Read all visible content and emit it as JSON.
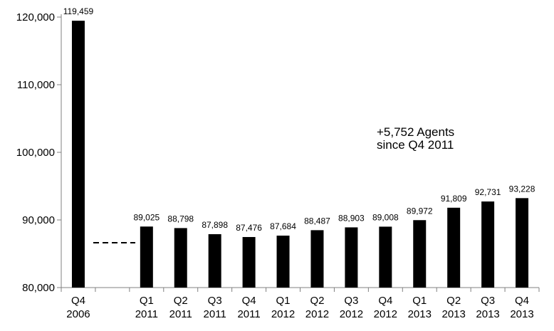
{
  "chart_data": {
    "type": "bar",
    "title": "",
    "xlabel": "",
    "ylabel": "",
    "ylim": [
      80000,
      120000
    ],
    "yticks": [
      "80,000",
      "90,000",
      "100,000",
      "110,000",
      "120,000"
    ],
    "ytick_values": [
      80000,
      90000,
      100000,
      110000,
      120000
    ],
    "categories": [
      {
        "q": "Q4",
        "y": "2006"
      },
      {
        "q": "",
        "y": ""
      },
      {
        "q": "Q1",
        "y": "2011"
      },
      {
        "q": "Q2",
        "y": "2011"
      },
      {
        "q": "Q3",
        "y": "2011"
      },
      {
        "q": "Q4",
        "y": "2011"
      },
      {
        "q": "Q1",
        "y": "2012"
      },
      {
        "q": "Q2",
        "y": "2012"
      },
      {
        "q": "Q3",
        "y": "2012"
      },
      {
        "q": "Q4",
        "y": "2012"
      },
      {
        "q": "Q1",
        "y": "2013"
      },
      {
        "q": "Q2",
        "y": "2013"
      },
      {
        "q": "Q3",
        "y": "2013"
      },
      {
        "q": "Q4",
        "y": "2013"
      }
    ],
    "values": [
      119459,
      null,
      89025,
      88798,
      87898,
      87476,
      87684,
      88487,
      88903,
      89008,
      89972,
      91809,
      92731,
      93228
    ],
    "value_labels": [
      "119,459",
      "",
      "89,025",
      "88,798",
      "87,898",
      "87,476",
      "87,684",
      "88,487",
      "88,903",
      "89,008",
      "89,972",
      "91,809",
      "92,731",
      "93,228"
    ],
    "annotation": [
      "+5,752 Agents",
      "since  Q4 2011"
    ],
    "axis_break": "dashed line between Q4 2006 and Q1 2011",
    "bar_color": "#000000",
    "grid": false
  }
}
